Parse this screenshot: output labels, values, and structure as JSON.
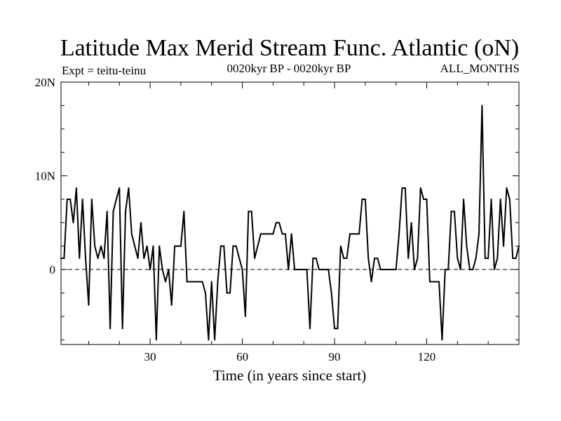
{
  "chart_data": {
    "type": "line",
    "title": "Latitude Max Merid Stream Func. Atlantic (oN)",
    "subtitle_left": "Expt = teitu-teinu",
    "subtitle_center": "0020kyr BP - 0020kyr BP",
    "subtitle_right": "ALL_MONTHS",
    "xlabel": "Time (in years since start)",
    "ylabel": "",
    "xlim": [
      1,
      150
    ],
    "ylim": [
      -8,
      20
    ],
    "xticks": [
      30,
      60,
      90,
      120
    ],
    "xtick_labels": [
      "30",
      "60",
      "90",
      "120"
    ],
    "yticks": [
      0,
      10,
      20
    ],
    "ytick_labels": [
      "0",
      "10N",
      "20N"
    ],
    "zero_line": "dashed",
    "series": [
      {
        "name": "teitu-teinu",
        "x": [
          1,
          2,
          3,
          4,
          5,
          6,
          7,
          8,
          9,
          10,
          11,
          12,
          13,
          14,
          15,
          16,
          17,
          18,
          19,
          20,
          21,
          22,
          23,
          24,
          25,
          26,
          27,
          28,
          29,
          30,
          31,
          32,
          33,
          34,
          35,
          36,
          37,
          38,
          39,
          40,
          41,
          42,
          43,
          44,
          45,
          46,
          47,
          48,
          49,
          50,
          51,
          52,
          53,
          54,
          55,
          56,
          57,
          58,
          59,
          60,
          61,
          62,
          63,
          64,
          65,
          66,
          67,
          68,
          69,
          70,
          71,
          72,
          73,
          74,
          75,
          76,
          77,
          78,
          79,
          80,
          81,
          82,
          83,
          84,
          85,
          86,
          87,
          88,
          89,
          90,
          91,
          92,
          93,
          94,
          95,
          96,
          97,
          98,
          99,
          100,
          101,
          102,
          103,
          104,
          105,
          106,
          107,
          108,
          109,
          110,
          111,
          112,
          113,
          114,
          115,
          116,
          117,
          118,
          119,
          120,
          121,
          122,
          123,
          124,
          125,
          126,
          127,
          128,
          129,
          130,
          131,
          132,
          133,
          134,
          135,
          136,
          137,
          138,
          139,
          140,
          141,
          142,
          143,
          144,
          145,
          146,
          147,
          148,
          149,
          150
        ],
        "values": [
          1.2,
          1.2,
          7.5,
          7.5,
          5,
          8.7,
          1.2,
          7.5,
          1.2,
          -3.8,
          7.5,
          2.5,
          1.2,
          2.5,
          1.2,
          6.2,
          -6.3,
          6.2,
          7.5,
          8.7,
          -6.3,
          6.2,
          8.7,
          3.8,
          2.5,
          1.2,
          5,
          1.2,
          2.5,
          0,
          2.5,
          -7.5,
          2.5,
          0,
          -1.3,
          0,
          -3.8,
          2.5,
          2.5,
          2.5,
          6.2,
          -1.3,
          -1.3,
          -1.3,
          -1.3,
          -1.3,
          -1.3,
          -2.5,
          -7.5,
          -1.3,
          -7.5,
          -1.3,
          2.5,
          2.5,
          -2.5,
          -2.5,
          2.5,
          2.5,
          1.2,
          0,
          -5,
          6.2,
          6.2,
          1.2,
          2.5,
          3.8,
          3.8,
          3.8,
          3.8,
          3.8,
          5,
          5,
          3.8,
          3.8,
          0,
          3.8,
          0,
          0,
          0,
          0,
          0,
          -6.3,
          1.2,
          1.2,
          0,
          0,
          0,
          0,
          -2.5,
          -6.3,
          -6.3,
          2.5,
          1.2,
          1.2,
          3.8,
          3.8,
          3.8,
          3.8,
          7.5,
          7.5,
          1.2,
          -1.3,
          1.2,
          1.2,
          0,
          0,
          0,
          0,
          0,
          0,
          3.8,
          8.7,
          8.7,
          1.2,
          5,
          0,
          1.2,
          8.7,
          7.5,
          7.5,
          -1.3,
          -1.3,
          -1.3,
          -1.3,
          -7.5,
          0,
          0,
          6.2,
          6.2,
          1.2,
          0,
          7.5,
          2.5,
          0,
          0,
          1.2,
          3.8,
          17.5,
          1.2,
          1.2,
          7.5,
          0,
          1.2,
          7.5,
          2.5,
          8.7,
          7.5,
          1.2,
          1.2,
          2.5
        ]
      }
    ]
  }
}
